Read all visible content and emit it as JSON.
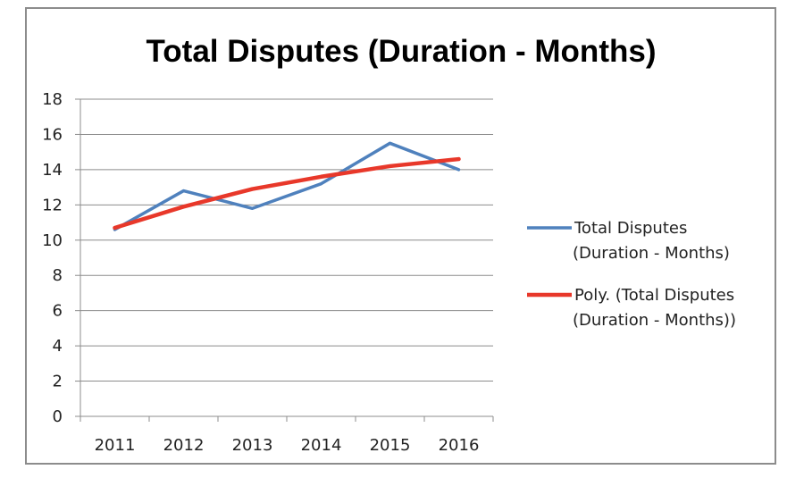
{
  "chart_data": {
    "type": "line",
    "title": "Total Disputes (Duration - Months)",
    "categories": [
      "2011",
      "2012",
      "2013",
      "2014",
      "2015",
      "2016"
    ],
    "ylim": [
      0,
      18
    ],
    "yticks": [
      "0",
      "2",
      "4",
      "6",
      "8",
      "10",
      "12",
      "14",
      "16",
      "18"
    ],
    "grid": true,
    "legend_position": "right",
    "series": [
      {
        "name": "Total Disputes (Duration - Months)",
        "legend_lines": [
          "Total Disputes",
          "(Duration - Months)"
        ],
        "color": "#4f81bd",
        "values": [
          10.6,
          12.8,
          11.8,
          13.2,
          15.5,
          14.0
        ]
      },
      {
        "name": "Poly. (Total Disputes (Duration - Months))",
        "legend_lines": [
          "Poly. (Total Disputes",
          "(Duration - Months))"
        ],
        "color": "#e8382a",
        "values": [
          10.7,
          11.9,
          12.9,
          13.6,
          14.2,
          14.6
        ]
      }
    ]
  }
}
